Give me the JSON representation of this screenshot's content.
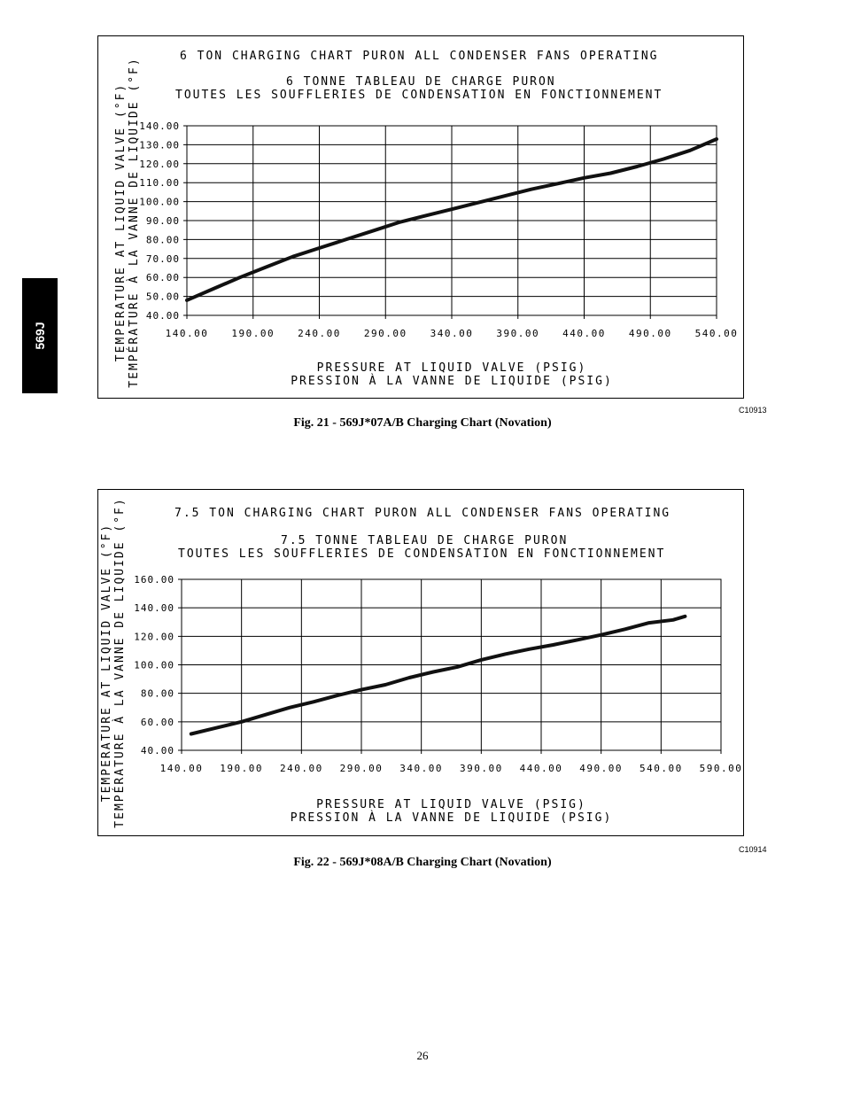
{
  "side_tab": {
    "label": "569J"
  },
  "page": {
    "number": "26"
  },
  "figures": [
    {
      "code": "C10913",
      "caption": "Fig. 21 - 569J*07A/B Charging Chart (Novation)"
    },
    {
      "code": "C10914",
      "caption": "Fig. 22 - 569J*08A/B Charging Chart (Novation)"
    }
  ],
  "chart_data": [
    {
      "type": "line",
      "title": "6 TON CHARGING CHART PURON ALL CONDENSER FANS OPERATING",
      "subtitle_1": "6 TONNE TABLEAU DE CHARGE PURON",
      "subtitle_2": "TOUTES LES SOUFFLERIES DE CONDENSATION EN FONCTIONNEMENT",
      "xlabel": "PRESSURE AT LIQUID VALVE (PSIG)",
      "xlabel_fr": "PRESSION À LA VANNE DE LIQUIDE (PSIG)",
      "ylabel": "TEMPERATURE AT LIQUID VALVE (°F)",
      "ylabel_fr": "TEMPÉRATURE À LA VANNE DE LIQUIDE (°F)",
      "xlim": [
        140,
        540
      ],
      "ylim": [
        40,
        140
      ],
      "xticks": [
        "140.00",
        "190.00",
        "240.00",
        "290.00",
        "340.00",
        "390.00",
        "440.00",
        "490.00",
        "540.00"
      ],
      "yticks": [
        "140.00",
        "130.00",
        "120.00",
        "110.00",
        "100.00",
        "90.00",
        "80.00",
        "70.00",
        "60.00",
        "50.00",
        "40.00"
      ],
      "grid": true,
      "x": [
        140,
        160,
        180,
        200,
        220,
        240,
        260,
        280,
        300,
        320,
        340,
        360,
        380,
        400,
        420,
        440,
        460,
        480,
        500,
        520,
        540
      ],
      "y": [
        48,
        54,
        60,
        65.5,
        71,
        75.5,
        80,
        84.5,
        89,
        92.5,
        96,
        99.5,
        103,
        106.5,
        109.5,
        112.5,
        115,
        118.5,
        122.5,
        127,
        133
      ]
    },
    {
      "type": "line",
      "title": "7.5 TON CHARGING CHART PURON ALL CONDENSER FANS OPERATING",
      "subtitle_1": "7.5 TONNE TABLEAU DE CHARGE PURON",
      "subtitle_2": "TOUTES LES SOUFFLERIES DE CONDENSATION EN FONCTIONNEMENT",
      "xlabel": "PRESSURE AT LIQUID VALVE (PSIG)",
      "xlabel_fr": "PRESSION À LA VANNE DE LIQUIDE (PSIG)",
      "ylabel": "TEMPERATURE AT LIQUID VALVE (°F)",
      "ylabel_fr": "TEMPÉRATURE À LA VANNE DE LIQUIDE (°F)",
      "xlim": [
        140,
        590
      ],
      "ylim": [
        40,
        160
      ],
      "xticks": [
        "140.00",
        "190.00",
        "240.00",
        "290.00",
        "340.00",
        "390.00",
        "440.00",
        "490.00",
        "540.00",
        "590.00"
      ],
      "yticks": [
        "160.00",
        "140.00",
        "120.00",
        "100.00",
        "80.00",
        "60.00",
        "40.00"
      ],
      "grid": true,
      "x": [
        148,
        170,
        190,
        210,
        230,
        250,
        270,
        290,
        310,
        330,
        350,
        370,
        390,
        410,
        430,
        450,
        470,
        490,
        510,
        530,
        550,
        560
      ],
      "y": [
        51.5,
        56,
        60,
        65,
        70,
        74,
        78.5,
        82.5,
        86,
        91,
        95,
        98.5,
        103.5,
        107.5,
        111,
        114,
        117.5,
        121,
        125,
        129.5,
        131.5,
        134
      ]
    }
  ]
}
